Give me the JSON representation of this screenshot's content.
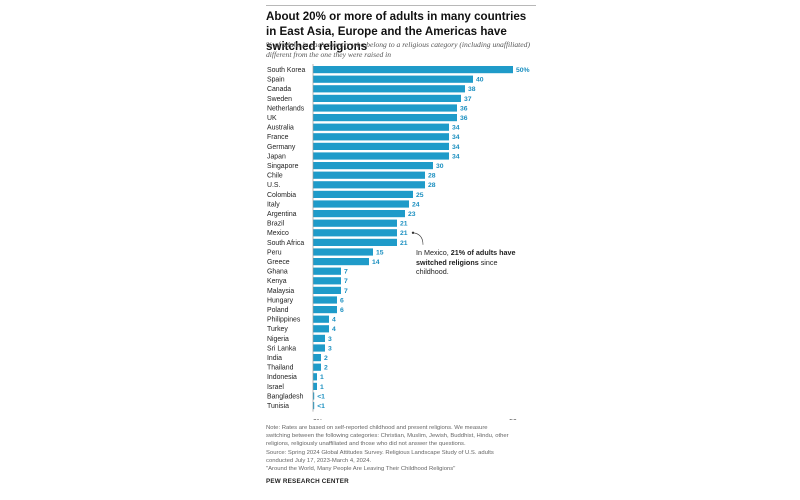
{
  "header": {
    "title": "About 20% or more of adults in many countries in East Asia, Europe and the Americas have switched religions",
    "subtitle": "% of adults in each country who belong to a religious category (including unaffiliated) different from the one they were raised in"
  },
  "annotation": {
    "prefix": "In Mexico, ",
    "highlight": "21% of adults have switched religions",
    "suffix": " since childhood."
  },
  "notes": {
    "lines": [
      "Note: Rates are based on self-reported childhood and present religions. We measure",
      "switching between the following categories: Christian, Muslim, Jewish, Buddhist, Hindu, other",
      "religions, religiously unaffiliated and those who did not answer the questions.",
      "Source: Spring 2024 Global Attitudes Survey. Religious Landscape Study of U.S. adults",
      "conducted July 17, 2023-March 4, 2024.",
      "\"Around the World, Many People Are Leaving Their Childhood Religions\""
    ],
    "source_org": "PEW RESEARCH CENTER"
  },
  "colors": {
    "bar": "#1f9bc9",
    "label": "#1a8fc0",
    "axis": "#999999",
    "text": "#222222"
  },
  "chart_data": {
    "type": "bar",
    "orientation": "horizontal",
    "categories": [
      "South Korea",
      "Spain",
      "Canada",
      "Sweden",
      "Netherlands",
      "UK",
      "Australia",
      "France",
      "Germany",
      "Japan",
      "Singapore",
      "Chile",
      "U.S.",
      "Colombia",
      "Italy",
      "Argentina",
      "Brazil",
      "Mexico",
      "South Africa",
      "Peru",
      "Greece",
      "Ghana",
      "Kenya",
      "Malaysia",
      "Hungary",
      "Poland",
      "Philippines",
      "Turkey",
      "Nigeria",
      "Sri Lanka",
      "India",
      "Thailand",
      "Indonesia",
      "Israel",
      "Bangladesh",
      "Tunisia"
    ],
    "values": [
      50,
      40,
      38,
      37,
      36,
      36,
      34,
      34,
      34,
      34,
      30,
      28,
      28,
      25,
      24,
      23,
      21,
      21,
      21,
      15,
      14,
      7,
      7,
      7,
      6,
      6,
      4,
      4,
      3,
      3,
      2,
      2,
      1,
      1,
      0.3,
      0.3
    ],
    "value_labels": [
      "50%",
      "40",
      "38",
      "37",
      "36",
      "36",
      "34",
      "34",
      "34",
      "34",
      "30",
      "28",
      "28",
      "25",
      "24",
      "23",
      "21",
      "21",
      "21",
      "15",
      "14",
      "7",
      "7",
      "7",
      "6",
      "6",
      "4",
      "4",
      "3",
      "3",
      "2",
      "2",
      "1",
      "1",
      "<1",
      "<1"
    ],
    "xlim": [
      0,
      50
    ],
    "x_ticks": [
      0,
      50
    ],
    "x_tick_labels": [
      "0%",
      "50"
    ],
    "grid": false,
    "legend": "none",
    "xlabel": "",
    "ylabel": ""
  }
}
